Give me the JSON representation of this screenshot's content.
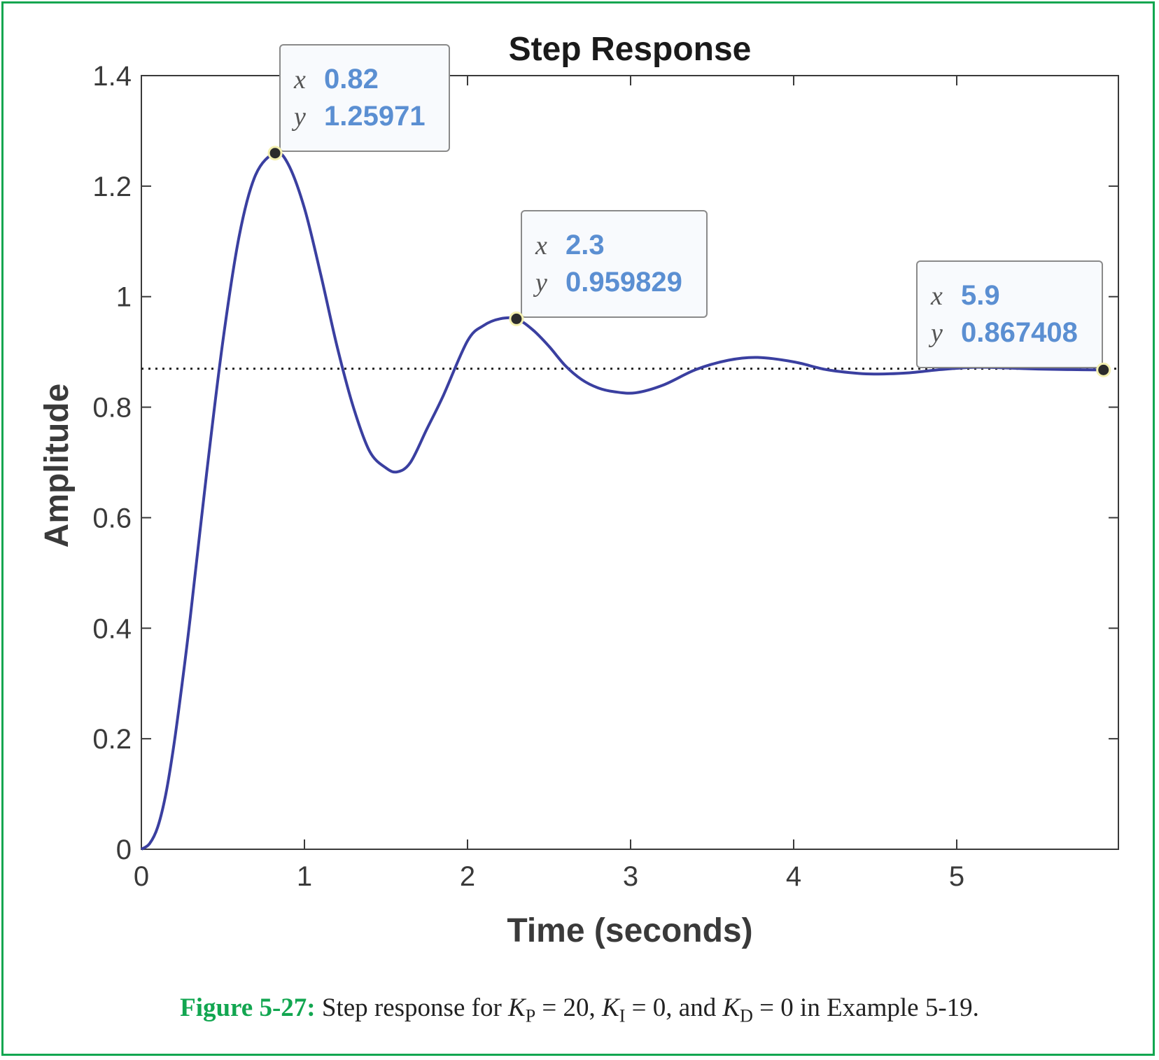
{
  "chart_data": {
    "type": "line",
    "title": "Step Response",
    "xlabel": "Time (seconds)",
    "ylabel": "Amplitude",
    "xlim": [
      0,
      6
    ],
    "ylim": [
      0,
      1.4
    ],
    "xticks": [
      0,
      1,
      2,
      3,
      4,
      5
    ],
    "yticks": [
      0,
      0.2,
      0.4,
      0.6,
      0.8,
      1,
      1.2,
      1.4
    ],
    "xtick_labels": [
      "0",
      "1",
      "2",
      "3",
      "4",
      "5"
    ],
    "ytick_labels": [
      "0",
      "0.2",
      "0.4",
      "0.6",
      "0.8",
      "1",
      "1.2",
      "1.4"
    ],
    "grid": false,
    "steady_state_value": 0.8696,
    "series": [
      {
        "color": "#3a3fa0",
        "x": [
          0,
          0.05,
          0.1,
          0.15,
          0.2,
          0.25,
          0.3,
          0.4,
          0.5,
          0.6,
          0.7,
          0.82,
          0.9,
          1.0,
          1.1,
          1.2,
          1.3,
          1.4,
          1.5,
          1.57,
          1.65,
          1.75,
          1.85,
          2.0,
          2.1,
          2.2,
          2.3,
          2.4,
          2.5,
          2.6,
          2.7,
          2.8,
          2.9,
          3.03,
          3.2,
          3.4,
          3.6,
          3.78,
          4.0,
          4.2,
          4.4,
          4.52,
          4.7,
          4.9,
          5.1,
          5.3,
          5.5,
          5.7,
          5.9,
          6.0
        ],
        "y": [
          0,
          0.01,
          0.04,
          0.1,
          0.19,
          0.3,
          0.42,
          0.68,
          0.92,
          1.11,
          1.22,
          1.2597,
          1.24,
          1.16,
          1.04,
          0.91,
          0.8,
          0.72,
          0.69,
          0.683,
          0.7,
          0.76,
          0.82,
          0.92,
          0.948,
          0.96,
          0.9598,
          0.94,
          0.91,
          0.875,
          0.85,
          0.835,
          0.828,
          0.826,
          0.84,
          0.868,
          0.885,
          0.89,
          0.882,
          0.868,
          0.861,
          0.86,
          0.862,
          0.868,
          0.872,
          0.871,
          0.869,
          0.868,
          0.8674,
          0.867
        ]
      }
    ],
    "datatips": [
      {
        "x_key": "x",
        "y_key": "y",
        "x_text": "0.82",
        "y_text": "1.25971",
        "x": 0.82,
        "y": 1.25971
      },
      {
        "x_key": "x",
        "y_key": "y",
        "x_text": "2.3",
        "y_text": "0.959829",
        "x": 2.3,
        "y": 0.959829
      },
      {
        "x_key": "x",
        "y_key": "y",
        "x_text": "5.9",
        "y_text": "0.867408",
        "x": 5.9,
        "y": 0.867408
      }
    ]
  },
  "caption": {
    "figure_label": "Figure 5-27:",
    "text_1": " Step response for ",
    "kp_symbol": "K",
    "kp_sub": "P",
    "kp_rest": " = 20,  ",
    "ki_symbol": "K",
    "ki_sub": "I",
    "ki_rest": " = 0, and ",
    "kd_symbol": "K",
    "kd_sub": "D",
    "kd_rest": " = 0 in Example 5-19."
  },
  "colors": {
    "frame": "#12a650",
    "line": "#3a3fa0",
    "datatip_value": "#5b8fd2",
    "axes": "#3a3a3a"
  }
}
